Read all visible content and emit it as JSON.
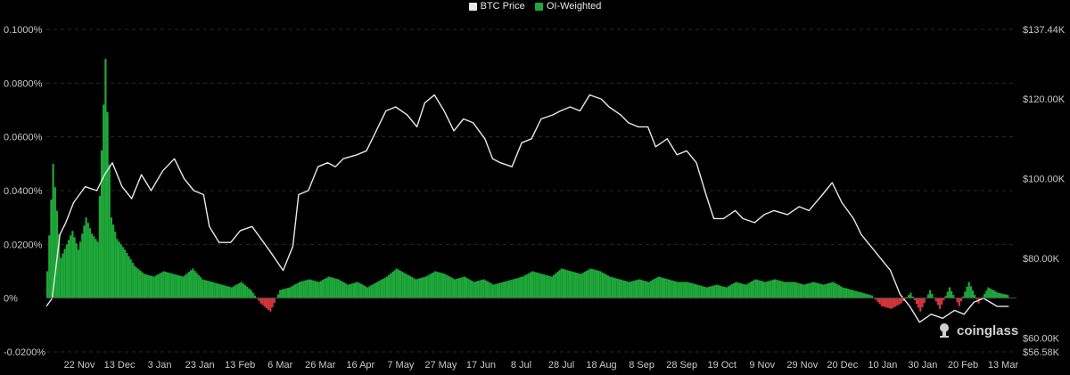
{
  "legend": [
    {
      "label": "BTC Price",
      "color": "#e8e8e8"
    },
    {
      "label": "OI-Weighted",
      "color": "#1fa83a"
    }
  ],
  "watermark": {
    "text": "coinglass"
  },
  "chart_data": {
    "type": "bar+line",
    "title": "",
    "legend_position": "top-center",
    "grid": "horizontal-dashed",
    "x_ticks": [
      "22 Nov",
      "13 Dec",
      "3 Jan",
      "23 Jan",
      "13 Feb",
      "6 Mar",
      "26 Mar",
      "16 Apr",
      "7 May",
      "27 May",
      "17 Jun",
      "8 Jul",
      "28 Jul",
      "18 Aug",
      "8 Sep",
      "28 Sep",
      "19 Oct",
      "9 Nov",
      "29 Nov",
      "20 Dec",
      "10 Jan",
      "30 Jan",
      "20 Feb",
      "13 Mar"
    ],
    "y_left": {
      "ticks": [
        "0.1000%",
        "0.0800%",
        "0.0600%",
        "0.0400%",
        "0.0200%",
        "0%",
        "-0.0200%"
      ],
      "range": [
        -0.02,
        0.1
      ],
      "unit": "%"
    },
    "y_right": {
      "ticks": [
        "$137.44K",
        "$120.00K",
        "$100.00K",
        "$80.00K",
        "$60.00K",
        "$56.58K"
      ],
      "range": [
        56.58,
        137.44
      ],
      "unit": "K USD"
    },
    "series": [
      {
        "name": "BTC Price",
        "axis": "right",
        "color": "#e8e8e8",
        "points": [
          [
            0,
            68
          ],
          [
            0.3,
            70
          ],
          [
            0.7,
            86
          ],
          [
            1,
            89
          ],
          [
            1.4,
            94
          ],
          [
            2,
            98
          ],
          [
            2.6,
            97
          ],
          [
            3,
            101
          ],
          [
            3.4,
            104
          ],
          [
            3.9,
            98
          ],
          [
            4.4,
            95
          ],
          [
            4.9,
            101
          ],
          [
            5.4,
            97
          ],
          [
            6,
            102
          ],
          [
            6.6,
            105
          ],
          [
            7.1,
            100
          ],
          [
            7.6,
            97
          ],
          [
            8.1,
            96
          ],
          [
            8.4,
            88
          ],
          [
            8.9,
            84
          ],
          [
            9.5,
            84
          ],
          [
            10,
            87
          ],
          [
            10.6,
            88
          ],
          [
            11.5,
            82
          ],
          [
            12.2,
            77
          ],
          [
            12.7,
            83
          ],
          [
            13,
            96
          ],
          [
            13.5,
            97
          ],
          [
            14,
            103
          ],
          [
            14.5,
            104
          ],
          [
            14.9,
            103
          ],
          [
            15.3,
            105
          ],
          [
            16,
            106
          ],
          [
            16.5,
            107
          ],
          [
            17,
            112
          ],
          [
            17.5,
            117
          ],
          [
            18,
            118
          ],
          [
            18.6,
            116
          ],
          [
            19.1,
            113
          ],
          [
            19.5,
            119
          ],
          [
            20,
            121
          ],
          [
            20.5,
            117
          ],
          [
            21,
            112
          ],
          [
            21.5,
            115
          ],
          [
            22,
            114
          ],
          [
            22.6,
            110
          ],
          [
            23,
            105
          ],
          [
            23.4,
            104
          ],
          [
            24,
            103
          ],
          [
            24.5,
            109
          ],
          [
            25,
            110
          ],
          [
            25.5,
            115
          ],
          [
            26.1,
            116
          ],
          [
            26.5,
            117
          ],
          [
            27,
            118
          ],
          [
            27.5,
            117
          ],
          [
            28,
            121
          ],
          [
            28.6,
            120
          ],
          [
            29,
            118
          ],
          [
            29.6,
            116
          ],
          [
            30,
            114
          ],
          [
            30.5,
            113
          ],
          [
            31,
            113
          ],
          [
            31.4,
            108
          ],
          [
            32,
            110
          ],
          [
            32.5,
            106
          ],
          [
            33,
            107
          ],
          [
            33.5,
            104
          ],
          [
            34,
            96
          ],
          [
            34.4,
            90
          ],
          [
            34.9,
            90
          ],
          [
            35.5,
            92
          ],
          [
            35.9,
            90
          ],
          [
            36.5,
            89
          ],
          [
            37,
            91
          ],
          [
            37.5,
            92
          ],
          [
            38.2,
            91
          ],
          [
            38.8,
            93
          ],
          [
            39.3,
            92
          ],
          [
            40,
            96
          ],
          [
            40.5,
            99
          ],
          [
            41,
            94
          ],
          [
            41.6,
            90
          ],
          [
            42,
            86
          ],
          [
            42.5,
            83
          ],
          [
            43,
            80
          ],
          [
            43.5,
            77
          ],
          [
            44,
            71
          ],
          [
            44.5,
            68
          ],
          [
            45,
            64
          ],
          [
            45.6,
            66
          ],
          [
            46.2,
            65
          ],
          [
            46.8,
            67
          ],
          [
            47.3,
            66
          ],
          [
            47.8,
            69
          ],
          [
            48.3,
            70
          ],
          [
            49,
            68
          ],
          [
            49.6,
            68
          ]
        ]
      },
      {
        "name": "OI-Weighted",
        "axis": "left",
        "color_positive": "#1fa83a",
        "color_negative": "#d2373b",
        "points": [
          [
            0,
            0.01
          ],
          [
            0.3,
            0.05
          ],
          [
            0.7,
            0.015
          ],
          [
            1,
            0.02
          ],
          [
            1.3,
            0.025
          ],
          [
            1.6,
            0.018
          ],
          [
            2,
            0.03
          ],
          [
            2.3,
            0.024
          ],
          [
            2.6,
            0.021
          ],
          [
            3,
            0.089
          ],
          [
            3.3,
            0.03
          ],
          [
            3.6,
            0.022
          ],
          [
            4,
            0.018
          ],
          [
            4.5,
            0.012
          ],
          [
            5,
            0.009
          ],
          [
            5.5,
            0.008
          ],
          [
            6,
            0.01
          ],
          [
            6.5,
            0.009
          ],
          [
            7,
            0.008
          ],
          [
            7.5,
            0.011
          ],
          [
            8,
            0.007
          ],
          [
            8.5,
            0.006
          ],
          [
            9,
            0.005
          ],
          [
            9.5,
            0.004
          ],
          [
            10,
            0.006
          ],
          [
            10.5,
            0.003
          ],
          [
            11,
            -0.002
          ],
          [
            11.5,
            -0.005
          ],
          [
            12,
            0.003
          ],
          [
            12.5,
            0.004
          ],
          [
            13,
            0.006
          ],
          [
            13.5,
            0.007
          ],
          [
            14,
            0.006
          ],
          [
            14.5,
            0.008
          ],
          [
            15,
            0.007
          ],
          [
            15.5,
            0.005
          ],
          [
            16,
            0.006
          ],
          [
            16.5,
            0.004
          ],
          [
            17,
            0.006
          ],
          [
            17.5,
            0.008
          ],
          [
            18,
            0.011
          ],
          [
            18.5,
            0.009
          ],
          [
            19,
            0.007
          ],
          [
            19.5,
            0.008
          ],
          [
            20,
            0.01
          ],
          [
            20.5,
            0.009
          ],
          [
            21,
            0.007
          ],
          [
            21.5,
            0.008
          ],
          [
            22,
            0.006
          ],
          [
            22.5,
            0.007
          ],
          [
            23,
            0.005
          ],
          [
            23.5,
            0.006
          ],
          [
            24,
            0.007
          ],
          [
            24.5,
            0.008
          ],
          [
            25,
            0.01
          ],
          [
            25.5,
            0.009
          ],
          [
            26,
            0.008
          ],
          [
            26.5,
            0.011
          ],
          [
            27,
            0.01
          ],
          [
            27.5,
            0.009
          ],
          [
            28,
            0.011
          ],
          [
            28.5,
            0.01
          ],
          [
            29,
            0.008
          ],
          [
            29.5,
            0.007
          ],
          [
            30,
            0.006
          ],
          [
            30.5,
            0.007
          ],
          [
            31,
            0.006
          ],
          [
            31.5,
            0.008
          ],
          [
            32,
            0.007
          ],
          [
            32.5,
            0.006
          ],
          [
            33,
            0.006
          ],
          [
            33.5,
            0.005
          ],
          [
            34,
            0.004
          ],
          [
            34.5,
            0.005
          ],
          [
            35,
            0.004
          ],
          [
            35.5,
            0.006
          ],
          [
            36,
            0.005
          ],
          [
            36.5,
            0.007
          ],
          [
            37,
            0.006
          ],
          [
            37.5,
            0.007
          ],
          [
            38,
            0.006
          ],
          [
            38.5,
            0.006
          ],
          [
            39,
            0.005
          ],
          [
            39.5,
            0.006
          ],
          [
            40,
            0.005
          ],
          [
            40.5,
            0.006
          ],
          [
            41,
            0.004
          ],
          [
            41.5,
            0.003
          ],
          [
            42,
            0.002
          ],
          [
            42.5,
            0.001
          ],
          [
            43,
            -0.003
          ],
          [
            43.5,
            -0.004
          ],
          [
            44,
            -0.002
          ],
          [
            44.5,
            0.002
          ],
          [
            45,
            -0.005
          ],
          [
            45.5,
            0.003
          ],
          [
            46,
            -0.004
          ],
          [
            46.5,
            0.004
          ],
          [
            47,
            -0.003
          ],
          [
            47.5,
            0.006
          ],
          [
            48,
            -0.002
          ],
          [
            48.5,
            0.004
          ],
          [
            49,
            0.002
          ],
          [
            49.6,
            0.001
          ]
        ]
      }
    ]
  }
}
